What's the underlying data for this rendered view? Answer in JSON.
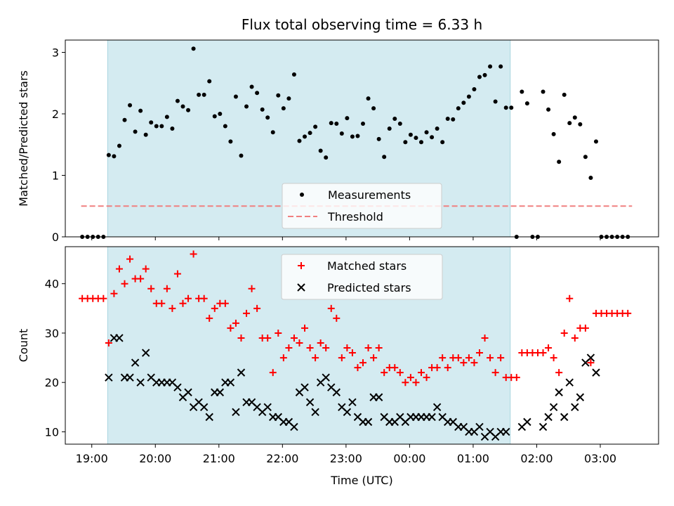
{
  "chart_data": [
    {
      "type": "scatter",
      "title": "Flux total observing time = 6.33 h",
      "xlabel": "",
      "ylabel": "Matched/Predicted stars",
      "ylim": [
        0,
        3.2
      ],
      "y_ticks": [
        0,
        1,
        2,
        3
      ],
      "xlim": [
        "18:35",
        "03:55"
      ],
      "x_ticks": [
        "19:00",
        "20:00",
        "21:00",
        "22:00",
        "23:00",
        "00:00",
        "01:00",
        "02:00",
        "03:00"
      ],
      "tick_labels_visible": false,
      "shaded_interval": [
        "19:15",
        "01:35"
      ],
      "shade_color": "#d4ebf1",
      "legend_position": "lower center",
      "series": [
        {
          "name": "Measurements",
          "marker": "dot",
          "color": "#000000",
          "points": [
            [
              "18:51",
              0
            ],
            [
              "18:56",
              0
            ],
            [
              "19:01",
              0
            ],
            [
              "19:06",
              0
            ],
            [
              "19:11",
              0
            ],
            [
              "19:16",
              1.33
            ],
            [
              "19:21",
              1.31
            ],
            [
              "19:26",
              1.48
            ],
            [
              "19:31",
              1.9
            ],
            [
              "19:36",
              2.14
            ],
            [
              "19:41",
              1.71
            ],
            [
              "19:46",
              2.05
            ],
            [
              "19:51",
              1.66
            ],
            [
              "19:56",
              1.86
            ],
            [
              "20:01",
              1.8
            ],
            [
              "20:06",
              1.8
            ],
            [
              "20:11",
              1.95
            ],
            [
              "20:16",
              1.76
            ],
            [
              "20:21",
              2.21
            ],
            [
              "20:26",
              2.12
            ],
            [
              "20:31",
              2.06
            ],
            [
              "20:36",
              3.06
            ],
            [
              "20:41",
              2.31
            ],
            [
              "20:46",
              2.31
            ],
            [
              "20:51",
              2.53
            ],
            [
              "20:56",
              1.96
            ],
            [
              "21:01",
              2.0
            ],
            [
              "21:06",
              1.8
            ],
            [
              "21:11",
              1.55
            ],
            [
              "21:16",
              2.28
            ],
            [
              "21:21",
              1.32
            ],
            [
              "21:26",
              2.12
            ],
            [
              "21:31",
              2.44
            ],
            [
              "21:36",
              2.34
            ],
            [
              "21:41",
              2.07
            ],
            [
              "21:46",
              1.94
            ],
            [
              "21:51",
              1.7
            ],
            [
              "21:56",
              2.3
            ],
            [
              "22:01",
              2.09
            ],
            [
              "22:06",
              2.25
            ],
            [
              "22:11",
              2.64
            ],
            [
              "22:16",
              1.56
            ],
            [
              "22:21",
              1.63
            ],
            [
              "22:26",
              1.69
            ],
            [
              "22:31",
              1.79
            ],
            [
              "22:36",
              1.4
            ],
            [
              "22:41",
              1.29
            ],
            [
              "22:46",
              1.85
            ],
            [
              "22:51",
              1.84
            ],
            [
              "22:56",
              1.68
            ],
            [
              "23:01",
              1.93
            ],
            [
              "23:06",
              1.63
            ],
            [
              "23:11",
              1.64
            ],
            [
              "23:16",
              1.84
            ],
            [
              "23:21",
              2.25
            ],
            [
              "23:26",
              2.09
            ],
            [
              "23:31",
              1.59
            ],
            [
              "23:36",
              1.3
            ],
            [
              "23:41",
              1.76
            ],
            [
              "23:46",
              1.92
            ],
            [
              "23:51",
              1.84
            ],
            [
              "23:56",
              1.54
            ],
            [
              "00:01",
              1.66
            ],
            [
              "00:06",
              1.61
            ],
            [
              "00:11",
              1.54
            ],
            [
              "00:16",
              1.7
            ],
            [
              "00:21",
              1.62
            ],
            [
              "00:26",
              1.76
            ],
            [
              "00:31",
              1.54
            ],
            [
              "00:36",
              1.92
            ],
            [
              "00:41",
              1.91
            ],
            [
              "00:46",
              2.09
            ],
            [
              "00:51",
              2.18
            ],
            [
              "00:56",
              2.28
            ],
            [
              "01:01",
              2.4
            ],
            [
              "01:06",
              2.6
            ],
            [
              "01:11",
              2.63
            ],
            [
              "01:16",
              2.77
            ],
            [
              "01:21",
              2.2
            ],
            [
              "01:26",
              2.77
            ],
            [
              "01:31",
              2.1
            ],
            [
              "01:36",
              2.1
            ],
            [
              "01:41",
              0
            ],
            [
              "01:46",
              2.36
            ],
            [
              "01:51",
              2.17
            ],
            [
              "01:56",
              0
            ],
            [
              "02:01",
              0
            ],
            [
              "02:06",
              2.36
            ],
            [
              "02:11",
              2.07
            ],
            [
              "02:16",
              1.67
            ],
            [
              "02:21",
              1.22
            ],
            [
              "02:26",
              2.31
            ],
            [
              "02:31",
              1.85
            ],
            [
              "02:36",
              1.94
            ],
            [
              "02:41",
              1.83
            ],
            [
              "02:46",
              1.3
            ],
            [
              "02:51",
              0.96
            ],
            [
              "02:56",
              1.55
            ],
            [
              "03:01",
              0
            ],
            [
              "03:06",
              0
            ],
            [
              "03:11",
              0
            ],
            [
              "03:16",
              0
            ],
            [
              "03:21",
              0
            ],
            [
              "03:26",
              0
            ]
          ]
        },
        {
          "name": "Threshold",
          "line_style": "dashed",
          "color": "#f08080",
          "x_range": [
            "18:50",
            "03:30"
          ],
          "value": 0.5
        }
      ]
    },
    {
      "type": "scatter",
      "title": "",
      "xlabel": "Time (UTC)",
      "ylabel": "Count",
      "ylim": [
        7.5,
        47.5
      ],
      "y_ticks": [
        10,
        20,
        30,
        40
      ],
      "xlim": [
        "18:35",
        "03:55"
      ],
      "x_ticks": [
        "19:00",
        "20:00",
        "21:00",
        "22:00",
        "23:00",
        "00:00",
        "01:00",
        "02:00",
        "03:00"
      ],
      "tick_labels_visible": true,
      "shaded_interval": [
        "19:15",
        "01:35"
      ],
      "shade_color": "#d4ebf1",
      "legend_position": "upper center",
      "x": [
        "18:51",
        "18:56",
        "19:01",
        "19:06",
        "19:11",
        "19:16",
        "19:21",
        "19:26",
        "19:31",
        "19:36",
        "19:41",
        "19:46",
        "19:51",
        "19:56",
        "20:01",
        "20:06",
        "20:11",
        "20:16",
        "20:21",
        "20:26",
        "20:31",
        "20:36",
        "20:41",
        "20:46",
        "20:51",
        "20:56",
        "21:01",
        "21:06",
        "21:11",
        "21:16",
        "21:21",
        "21:26",
        "21:31",
        "21:36",
        "21:41",
        "21:46",
        "21:51",
        "21:56",
        "22:01",
        "22:06",
        "22:11",
        "22:16",
        "22:21",
        "22:26",
        "22:31",
        "22:36",
        "22:41",
        "22:46",
        "22:51",
        "22:56",
        "23:01",
        "23:06",
        "23:11",
        "23:16",
        "23:21",
        "23:26",
        "23:31",
        "23:36",
        "23:41",
        "23:46",
        "23:51",
        "23:56",
        "00:01",
        "00:06",
        "00:11",
        "00:16",
        "00:21",
        "00:26",
        "00:31",
        "00:36",
        "00:41",
        "00:46",
        "00:51",
        "00:56",
        "01:01",
        "01:06",
        "01:11",
        "01:16",
        "01:21",
        "01:26",
        "01:31",
        "01:36",
        "01:41",
        "01:46",
        "01:51",
        "01:56",
        "02:01",
        "02:06",
        "02:11",
        "02:16",
        "02:21",
        "02:26",
        "02:31",
        "02:36",
        "02:41",
        "02:46",
        "02:51",
        "02:56",
        "03:01",
        "03:06",
        "03:11",
        "03:16",
        "03:21",
        "03:26"
      ],
      "series": [
        {
          "name": "Matched stars",
          "marker": "plus",
          "color": "#ff0000",
          "values": [
            37,
            37,
            37,
            37,
            37,
            28,
            38,
            43,
            40,
            45,
            41,
            41,
            43,
            39,
            36,
            36,
            39,
            35,
            42,
            36,
            37,
            46,
            37,
            37,
            33,
            35,
            36,
            36,
            31,
            32,
            29,
            34,
            39,
            35,
            29,
            29,
            22,
            30,
            25,
            27,
            29,
            28,
            31,
            27,
            25,
            28,
            27,
            35,
            33,
            25,
            27,
            26,
            23,
            24,
            27,
            25,
            27,
            22,
            23,
            23,
            22,
            20,
            21,
            20,
            22,
            21,
            23,
            23,
            25,
            23,
            25,
            25,
            24,
            25,
            24,
            26,
            29,
            25,
            22,
            25,
            21,
            21,
            21,
            26,
            26,
            26,
            26,
            26,
            27,
            25,
            22,
            30,
            37,
            29,
            31,
            31,
            24,
            34,
            34,
            34,
            34,
            34,
            34,
            34
          ]
        },
        {
          "name": "Predicted stars",
          "marker": "x",
          "color": "#000000",
          "values": [
            null,
            null,
            null,
            null,
            null,
            21,
            29,
            29,
            21,
            21,
            24,
            20,
            26,
            21,
            20,
            20,
            20,
            20,
            19,
            17,
            18,
            15,
            16,
            15,
            13,
            18,
            18,
            20,
            20,
            14,
            22,
            16,
            16,
            15,
            14,
            15,
            13,
            13,
            12,
            12,
            11,
            18,
            19,
            16,
            14,
            20,
            21,
            19,
            18,
            15,
            14,
            16,
            13,
            12,
            12,
            17,
            17,
            13,
            12,
            12,
            13,
            12,
            13,
            13,
            13,
            13,
            13,
            15,
            13,
            12,
            12,
            11,
            11,
            10,
            10,
            11,
            9,
            10,
            9,
            10,
            10,
            null,
            null,
            11,
            12,
            null,
            null,
            11,
            13,
            15,
            18,
            13,
            20,
            15,
            17,
            24,
            25,
            22,
            null,
            null,
            null,
            null,
            null,
            null
          ]
        }
      ]
    }
  ]
}
